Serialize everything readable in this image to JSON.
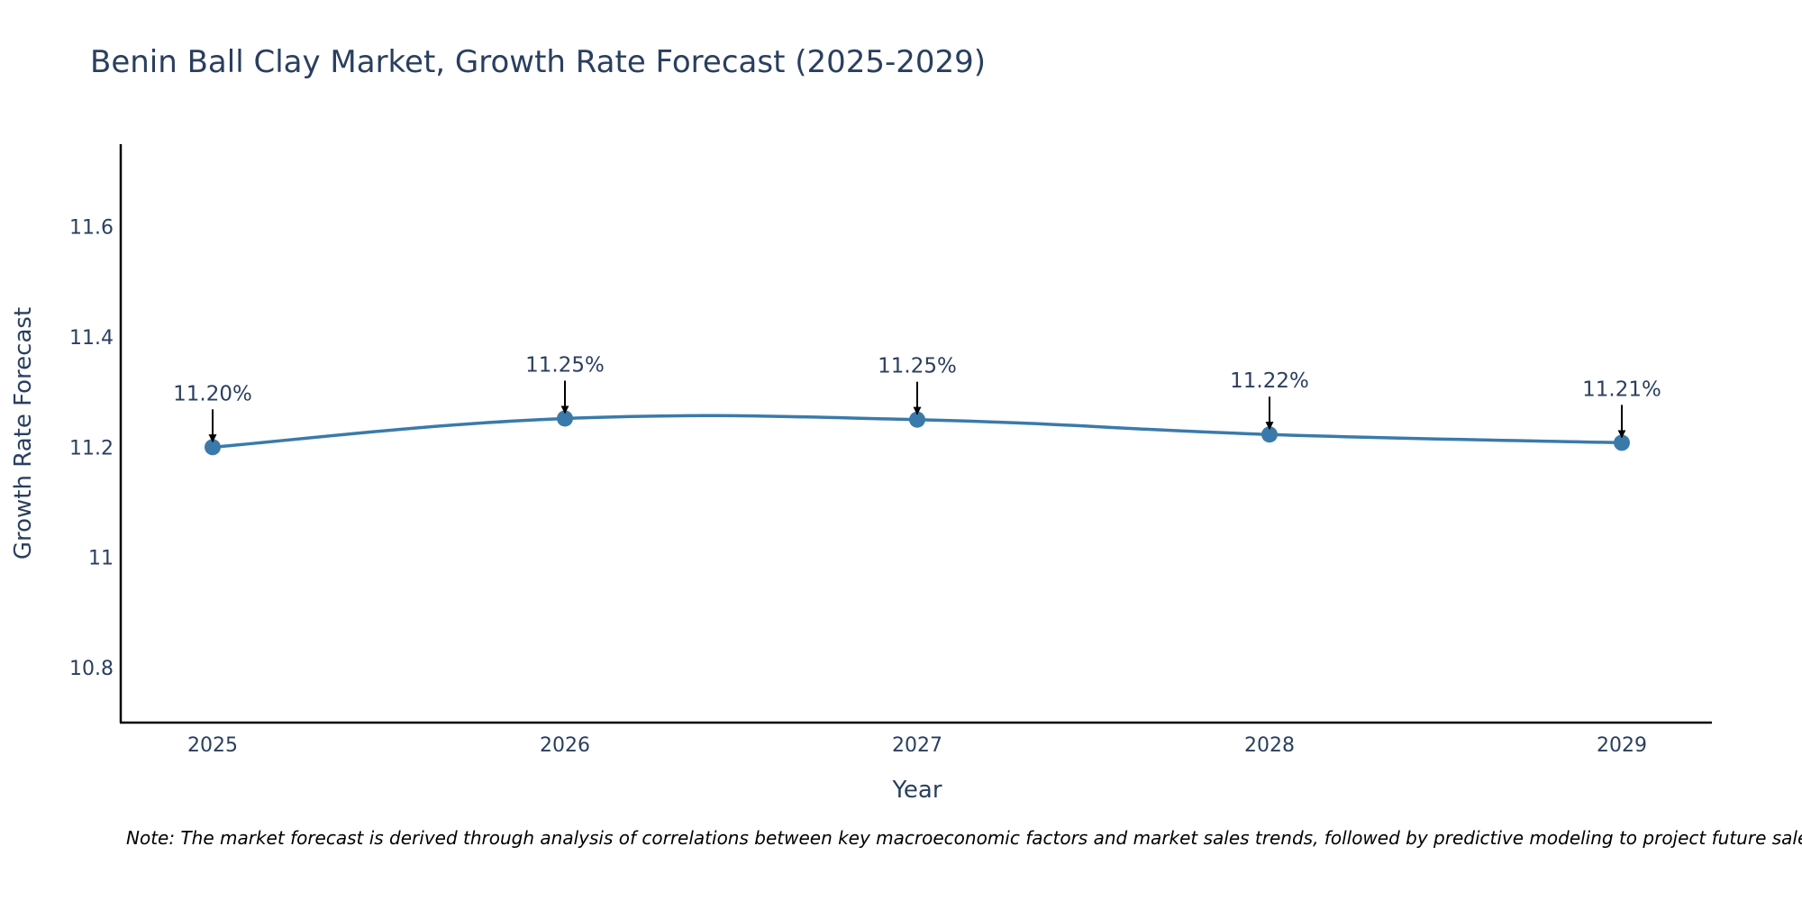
{
  "chart_data": {
    "type": "line",
    "title": "Benin Ball Clay Market, Growth Rate Forecast (2025-2029)",
    "xlabel": "Year",
    "ylabel": "Growth Rate Forecast",
    "categories": [
      "2025",
      "2026",
      "2027",
      "2028",
      "2029"
    ],
    "series": [
      {
        "name": "Growth Rate Forecast",
        "values": [
          11.2,
          11.252,
          11.25,
          11.223,
          11.208
        ]
      }
    ],
    "data_labels": [
      "11.20%",
      "11.25%",
      "11.25%",
      "11.22%",
      "11.21%"
    ],
    "yticks": [
      10.8,
      11,
      11.2,
      11.4,
      11.6
    ],
    "ytick_labels": [
      "10.8",
      "11",
      "11.2",
      "11.4",
      "11.6"
    ],
    "ylim": [
      10.7,
      11.75
    ],
    "grid": false,
    "legend": "none",
    "colors": {
      "line": "#3a7aab",
      "text": "#2a3f5f",
      "axis": "#000000"
    }
  },
  "note": "Note: The market forecast is derived through analysis of correlations between key macroeconomic factors and market sales trends, followed by predictive modeling to project future sales."
}
